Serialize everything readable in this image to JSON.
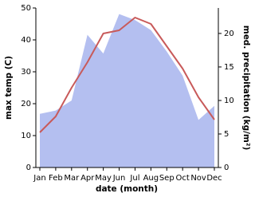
{
  "chart_data": {
    "type": "line+area",
    "x_label": "date (month)",
    "y_label": "max temp (C)",
    "y2_label": "med. precipitation (kg/m²)",
    "categories": [
      "Jan",
      "Feb",
      "Mar",
      "Apr",
      "May",
      "Jun",
      "Jul",
      "Aug",
      "Sep",
      "Oct",
      "Nov",
      "Dec"
    ],
    "series": [
      {
        "name": "max temp",
        "kind": "line",
        "color": "#c85a5a",
        "values": [
          11,
          16,
          25,
          33,
          42,
          43,
          47,
          45,
          38,
          31,
          22,
          15
        ]
      },
      {
        "name": "med. precipitation",
        "kind": "area",
        "axis": "y2",
        "color": "#b4bff0",
        "values": [
          8.0,
          8.5,
          10,
          19.8,
          17,
          22.9,
          22,
          20.5,
          17.3,
          13.7,
          7.1,
          9.2
        ]
      }
    ],
    "ylim": [
      0,
      50
    ],
    "yticks": [
      0,
      10,
      20,
      30,
      40,
      50
    ],
    "y2lim": [
      0,
      23.8
    ],
    "y2ticks": [
      0,
      5,
      10,
      15,
      20
    ]
  }
}
